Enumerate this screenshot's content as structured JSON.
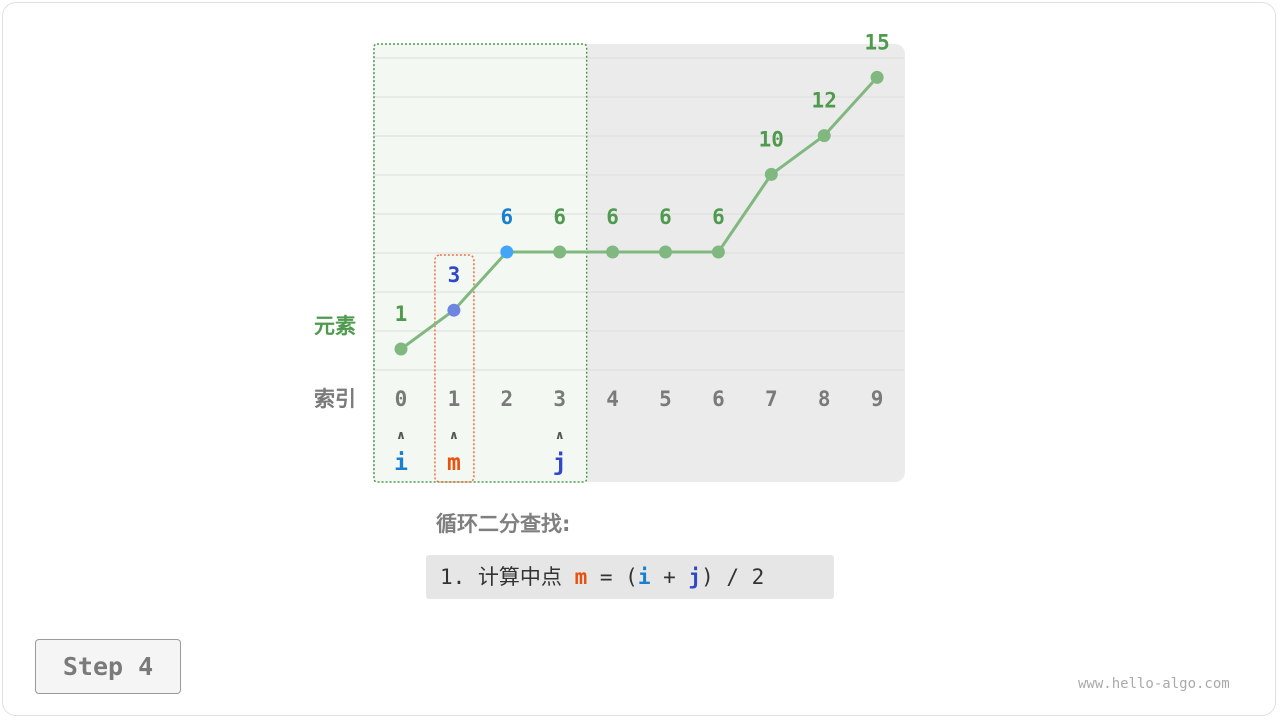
{
  "row_labels": {
    "elements": "元素",
    "indices": "索引"
  },
  "array": {
    "indices": [
      "0",
      "1",
      "2",
      "3",
      "4",
      "5",
      "6",
      "7",
      "8",
      "9"
    ],
    "values": [
      1,
      3,
      6,
      6,
      6,
      6,
      6,
      10,
      12,
      15
    ],
    "value_labels": [
      "1",
      "3",
      "6",
      "6",
      "6",
      "6",
      "6",
      "10",
      "12",
      "15"
    ]
  },
  "pointers": [
    {
      "name": "i",
      "index": 0,
      "color": "#1a7fcf"
    },
    {
      "name": "m",
      "index": 1,
      "color": "#e8520e"
    },
    {
      "name": "j",
      "index": 3,
      "color": "#2f47c9"
    }
  ],
  "pointer_arrow": "∧",
  "search_range": {
    "from": 0,
    "to": 3
  },
  "highlight": {
    "mid_index": 1,
    "mid_label_color": "#2f47c9",
    "mid_point_color": "#6f86e0",
    "special_index": 2,
    "special_label_color": "#1a7fcf",
    "special_point_color": "#42a5f5"
  },
  "colors": {
    "line": "#80b880",
    "point": "#80b880",
    "value_label": "#4f9a4f",
    "index_label": "#7a7a7a",
    "inactive_bg": "#ebebeb",
    "active_bg": "#f3f8f3",
    "range_border": "#4f9a4f",
    "mid_border": "#f07040"
  },
  "description": {
    "title": "循环二分查找:",
    "step_prefix": "1. 计算中点 ",
    "m": "m",
    "eq": " = (",
    "i": "i",
    "plus": " + ",
    "j": "j",
    "tail": ") / 2"
  },
  "step_button": "Step 4",
  "watermark": "www.hello-algo.com"
}
